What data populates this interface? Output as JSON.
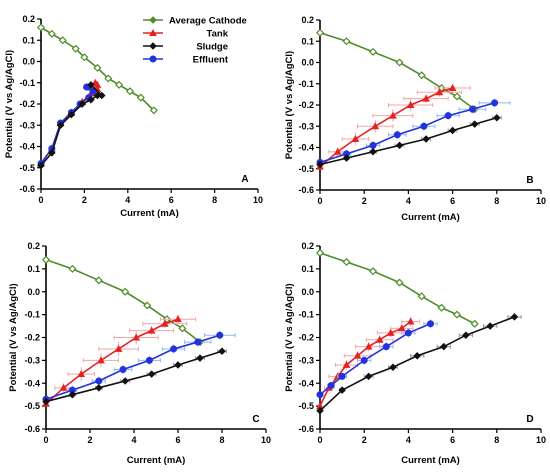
{
  "colors": {
    "cathode": "#4e8c2a",
    "tank": "#e52222",
    "sludge": "#111111",
    "effluent": "#2233dd",
    "tank_err": "#f3a5a5",
    "effluent_err": "#8fb8f0",
    "sludge_err": "#999999",
    "cathode_err": "#9cc07a"
  },
  "legend": {
    "items": [
      {
        "key": "cathode",
        "label": "Average Cathode",
        "marker": "diamond"
      },
      {
        "key": "tank",
        "label": "Tank",
        "marker": "triangle"
      },
      {
        "key": "sludge",
        "label": "Sludge",
        "marker": "diamond"
      },
      {
        "key": "effluent",
        "label": "Effluent",
        "marker": "circle"
      }
    ]
  },
  "chart_data": [
    {
      "type": "line",
      "panel": "A",
      "xlabel": "Current (mA)",
      "ylabel": "Potential (V vs Ag/AgCl)",
      "xlim": [
        0,
        10
      ],
      "ylim": [
        -0.6,
        0.2
      ],
      "xticks": [
        "0",
        "2",
        "4",
        "6",
        "8",
        "10"
      ],
      "yticks": [
        "0.2",
        "0.1",
        "0.0",
        "-0.1",
        "-0.2",
        "-0.3",
        "-0.4",
        "-0.5",
        "-0.6"
      ],
      "series": [
        {
          "name": "Average Cathode",
          "key": "cathode",
          "marker": "diamond",
          "open": true,
          "x": [
            0,
            0.5,
            1.0,
            1.6,
            2.0,
            2.6,
            3.1,
            3.6,
            4.1,
            4.6,
            5.2
          ],
          "y": [
            0.16,
            0.13,
            0.1,
            0.06,
            0.02,
            -0.03,
            -0.08,
            -0.11,
            -0.14,
            -0.17,
            -0.23
          ]
        },
        {
          "name": "Tank",
          "key": "tank",
          "marker": "triangle",
          "x": [
            0,
            0.5,
            0.9,
            1.4,
            1.9,
            2.3,
            2.6,
            2.6,
            2.5
          ],
          "y": [
            -0.48,
            -0.41,
            -0.29,
            -0.24,
            -0.19,
            -0.15,
            -0.13,
            -0.11,
            -0.1
          ]
        },
        {
          "name": "Sludge",
          "key": "sludge",
          "marker": "diamond",
          "x": [
            0,
            0.5,
            0.9,
            1.4,
            1.9,
            2.3,
            2.6,
            2.8,
            2.3
          ],
          "y": [
            -0.49,
            -0.43,
            -0.3,
            -0.25,
            -0.2,
            -0.18,
            -0.16,
            -0.16,
            -0.11
          ]
        },
        {
          "name": "Effluent",
          "key": "effluent",
          "marker": "circle",
          "x": [
            0,
            0.5,
            0.9,
            1.4,
            1.8,
            2.2,
            2.4,
            2.2,
            2.1
          ],
          "y": [
            -0.48,
            -0.41,
            -0.29,
            -0.24,
            -0.2,
            -0.17,
            -0.14,
            -0.12,
            -0.12
          ]
        }
      ]
    },
    {
      "type": "line",
      "panel": "B",
      "xlabel": "Current (mA)",
      "ylabel": "Potential (V vs Ag/AgCl)",
      "xlim": [
        0,
        10
      ],
      "ylim": [
        -0.6,
        0.2
      ],
      "xticks": [
        "0",
        "2",
        "4",
        "6",
        "8",
        "10"
      ],
      "yticks": [
        "0.2",
        "0.1",
        "0.0",
        "-0.1",
        "-0.2",
        "-0.3",
        "-0.4",
        "-0.5",
        "-0.6"
      ],
      "series": [
        {
          "name": "Average Cathode",
          "key": "cathode",
          "marker": "diamond",
          "open": true,
          "x": [
            0,
            1.2,
            2.4,
            3.6,
            4.6,
            5.5,
            6.2,
            7.0
          ],
          "y": [
            0.14,
            0.1,
            0.05,
            0.0,
            -0.06,
            -0.12,
            -0.16,
            -0.22
          ]
        },
        {
          "name": "Tank",
          "key": "tank",
          "marker": "triangle",
          "x": [
            0,
            0.8,
            1.6,
            2.5,
            3.3,
            4.1,
            4.8,
            5.4,
            6.0
          ],
          "y": [
            -0.49,
            -0.42,
            -0.36,
            -0.3,
            -0.25,
            -0.2,
            -0.17,
            -0.14,
            -0.12
          ],
          "xerr": [
            0.1,
            0.4,
            0.6,
            0.8,
            0.9,
            1.0,
            1.0,
            1.0,
            0.8
          ],
          "yerr": [
            0.01,
            0.02,
            0.03,
            0.03,
            0.03,
            0.03,
            0.02,
            0.02,
            0.02
          ]
        },
        {
          "name": "Sludge",
          "key": "sludge",
          "marker": "diamond",
          "x": [
            0,
            1.2,
            2.4,
            3.6,
            4.8,
            6.0,
            7.0,
            8.0
          ],
          "y": [
            -0.48,
            -0.45,
            -0.42,
            -0.39,
            -0.36,
            -0.32,
            -0.29,
            -0.26
          ],
          "xerr": [
            0.05,
            0.1,
            0.15,
            0.2,
            0.2,
            0.2,
            0.2,
            0.2
          ],
          "yerr": [
            0.01,
            0.01,
            0.01,
            0.01,
            0.01,
            0.01,
            0.01,
            0.01
          ]
        },
        {
          "name": "Effluent",
          "key": "effluent",
          "marker": "circle",
          "x": [
            0,
            1.2,
            2.4,
            3.5,
            4.7,
            5.8,
            6.9,
            7.9
          ],
          "y": [
            -0.47,
            -0.43,
            -0.39,
            -0.34,
            -0.3,
            -0.25,
            -0.22,
            -0.19
          ],
          "xerr": [
            0.05,
            0.2,
            0.3,
            0.4,
            0.5,
            0.5,
            0.6,
            0.7
          ],
          "yerr": [
            0.01,
            0.02,
            0.02,
            0.02,
            0.02,
            0.02,
            0.02,
            0.02
          ]
        }
      ]
    },
    {
      "type": "line",
      "panel": "C",
      "xlabel": "Current (mA)",
      "ylabel": "Potential (V vs Ag/AgCl)",
      "xlim": [
        0,
        10
      ],
      "ylim": [
        -0.6,
        0.2
      ],
      "xticks": [
        "0",
        "2",
        "4",
        "6",
        "8",
        "10"
      ],
      "yticks": [
        "0.2",
        "0.1",
        "0.0",
        "-0.1",
        "-0.2",
        "-0.3",
        "-0.4",
        "-0.5",
        "-0.6"
      ],
      "series": [
        {
          "name": "Average Cathode",
          "key": "cathode",
          "marker": "diamond",
          "open": true,
          "x": [
            0,
            1.2,
            2.4,
            3.6,
            4.6,
            5.5,
            6.2,
            7.0
          ],
          "y": [
            0.14,
            0.1,
            0.05,
            0.0,
            -0.06,
            -0.12,
            -0.16,
            -0.22
          ]
        },
        {
          "name": "Tank",
          "key": "tank",
          "marker": "triangle",
          "x": [
            0,
            0.8,
            1.6,
            2.5,
            3.3,
            4.1,
            4.8,
            5.4,
            6.0
          ],
          "y": [
            -0.49,
            -0.42,
            -0.36,
            -0.3,
            -0.25,
            -0.2,
            -0.17,
            -0.14,
            -0.12
          ],
          "xerr": [
            0.1,
            0.4,
            0.6,
            0.8,
            0.9,
            1.0,
            1.0,
            1.0,
            0.8
          ],
          "yerr": [
            0.01,
            0.02,
            0.03,
            0.03,
            0.03,
            0.03,
            0.02,
            0.02,
            0.02
          ]
        },
        {
          "name": "Sludge",
          "key": "sludge",
          "marker": "diamond",
          "x": [
            0,
            1.2,
            2.4,
            3.6,
            4.8,
            6.0,
            7.0,
            8.0
          ],
          "y": [
            -0.48,
            -0.45,
            -0.42,
            -0.39,
            -0.36,
            -0.32,
            -0.29,
            -0.26
          ],
          "xerr": [
            0.05,
            0.1,
            0.15,
            0.2,
            0.2,
            0.2,
            0.2,
            0.2
          ],
          "yerr": [
            0.01,
            0.01,
            0.01,
            0.01,
            0.01,
            0.01,
            0.01,
            0.01
          ]
        },
        {
          "name": "Effluent",
          "key": "effluent",
          "marker": "circle",
          "x": [
            0,
            1.2,
            2.4,
            3.5,
            4.7,
            5.8,
            6.9,
            7.9
          ],
          "y": [
            -0.47,
            -0.43,
            -0.39,
            -0.34,
            -0.3,
            -0.25,
            -0.22,
            -0.19
          ],
          "xerr": [
            0.05,
            0.2,
            0.3,
            0.4,
            0.5,
            0.5,
            0.6,
            0.7
          ],
          "yerr": [
            0.01,
            0.02,
            0.02,
            0.02,
            0.02,
            0.02,
            0.02,
            0.02
          ]
        }
      ]
    },
    {
      "type": "line",
      "panel": "D",
      "xlabel": "Current (mA)",
      "ylabel": "Potential (V vs Ag/AgCl)",
      "xlim": [
        0,
        10
      ],
      "ylim": [
        -0.6,
        0.2
      ],
      "xticks": [
        "0",
        "2",
        "4",
        "6",
        "8",
        "10"
      ],
      "yticks": [
        "0.2",
        "0.1",
        "0.0",
        "-0.1",
        "-0.2",
        "-0.3",
        "-0.4",
        "-0.5",
        "-0.6"
      ],
      "series": [
        {
          "name": "Average Cathode",
          "key": "cathode",
          "marker": "diamond",
          "open": true,
          "x": [
            0,
            1.2,
            2.4,
            3.6,
            4.6,
            5.5,
            6.2,
            7.0
          ],
          "y": [
            0.17,
            0.13,
            0.09,
            0.04,
            -0.02,
            -0.07,
            -0.1,
            -0.14
          ]
        },
        {
          "name": "Tank",
          "key": "tank",
          "marker": "triangle",
          "x": [
            0,
            0.4,
            0.8,
            1.2,
            1.7,
            2.2,
            2.7,
            3.2,
            3.7,
            4.1
          ],
          "y": [
            -0.5,
            -0.42,
            -0.37,
            -0.32,
            -0.28,
            -0.24,
            -0.21,
            -0.18,
            -0.16,
            -0.13
          ],
          "xerr": [
            0.05,
            0.2,
            0.4,
            0.5,
            0.6,
            0.6,
            0.6,
            0.6,
            0.5,
            0.4
          ],
          "yerr": [
            0.01,
            0.02,
            0.02,
            0.02,
            0.02,
            0.02,
            0.02,
            0.02,
            0.02,
            0.02
          ]
        },
        {
          "name": "Sludge",
          "key": "sludge",
          "marker": "diamond",
          "x": [
            0,
            1.0,
            2.2,
            3.3,
            4.4,
            5.6,
            6.6,
            7.7,
            8.8
          ],
          "y": [
            -0.52,
            -0.43,
            -0.37,
            -0.33,
            -0.28,
            -0.24,
            -0.19,
            -0.15,
            -0.11
          ],
          "xerr": [
            0.05,
            0.1,
            0.2,
            0.2,
            0.3,
            0.3,
            0.3,
            0.3,
            0.3
          ],
          "yerr": [
            0.01,
            0.01,
            0.01,
            0.01,
            0.01,
            0.01,
            0.01,
            0.01,
            0.01
          ]
        },
        {
          "name": "Effluent",
          "key": "effluent",
          "marker": "circle",
          "x": [
            0,
            0.5,
            1.0,
            2.0,
            3.0,
            4.0,
            5.0
          ],
          "y": [
            -0.45,
            -0.41,
            -0.37,
            -0.3,
            -0.24,
            -0.18,
            -0.14
          ],
          "xerr": [
            0.05,
            0.15,
            0.2,
            0.3,
            0.3,
            0.3,
            0.3
          ],
          "yerr": [
            0.01,
            0.01,
            0.01,
            0.02,
            0.02,
            0.02,
            0.02
          ]
        }
      ]
    }
  ]
}
